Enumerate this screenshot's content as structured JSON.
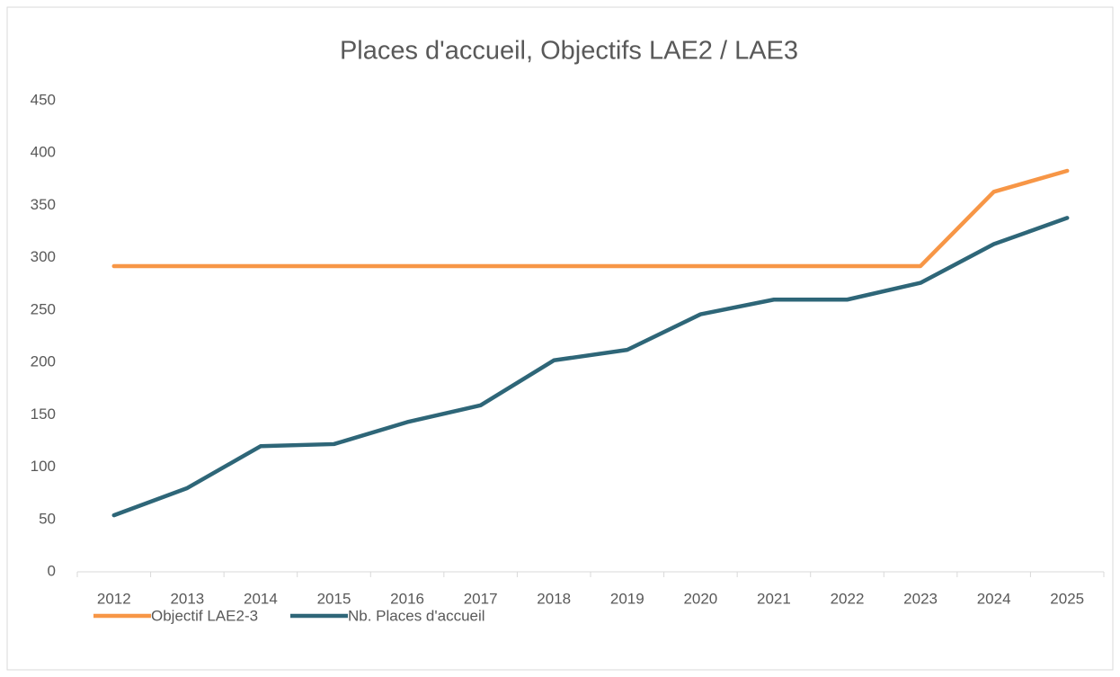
{
  "chart_data": {
    "type": "line",
    "title": "Places d'accueil, Objectifs LAE2 / LAE3",
    "categories": [
      "2012",
      "2013",
      "2014",
      "2015",
      "2016",
      "2017",
      "2018",
      "2019",
      "2020",
      "2021",
      "2022",
      "2023",
      "2024",
      "2025"
    ],
    "series": [
      {
        "name": "Objectif LAE2-3",
        "color": "#f79646",
        "values": [
          292,
          292,
          292,
          292,
          292,
          292,
          292,
          292,
          292,
          292,
          292,
          292,
          363,
          383
        ]
      },
      {
        "name": "Nb. Places d'accueil",
        "color": "#2e6678",
        "values": [
          54,
          80,
          120,
          122,
          143,
          159,
          202,
          212,
          246,
          260,
          260,
          276,
          313,
          338
        ]
      }
    ],
    "ylim": [
      0,
      450
    ],
    "yticks": [
      0,
      50,
      100,
      150,
      200,
      250,
      300,
      350,
      400,
      450
    ],
    "grid": false,
    "legend": "bottom"
  }
}
